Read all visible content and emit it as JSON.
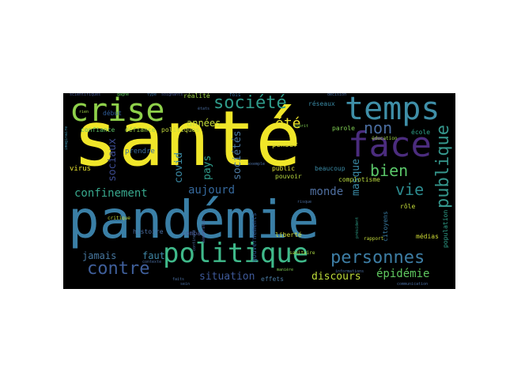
{
  "word_cloud": {
    "background": "#000000",
    "words": [
      {
        "text": "santé",
        "color": "#f0e629"
      },
      {
        "text": "pandémie",
        "color": "#3a7fa6"
      },
      {
        "text": "temps",
        "color": "#3f8fa8"
      },
      {
        "text": "crise",
        "color": "#8fd14a"
      },
      {
        "text": "politique",
        "color": "#3fb98a"
      },
      {
        "text": "face",
        "color": "#4b2c7e"
      },
      {
        "text": "société",
        "color": "#2f9b8a"
      },
      {
        "text": "personnes",
        "color": "#3d7da4"
      },
      {
        "text": "contre",
        "color": "#3f5f9b"
      },
      {
        "text": "confinement",
        "color": "#38a88d"
      },
      {
        "text": "publique",
        "color": "#35968c"
      },
      {
        "text": "non",
        "color": "#4a6da0"
      },
      {
        "text": "été",
        "color": "#f0e629"
      },
      {
        "text": "bien",
        "color": "#5ac669"
      },
      {
        "text": "vie",
        "color": "#2c8a8e"
      },
      {
        "text": "monde",
        "color": "#4f6fa0"
      },
      {
        "text": "épidémie",
        "color": "#5fc85f"
      },
      {
        "text": "aujourd",
        "color": "#35689c"
      },
      {
        "text": "situation",
        "color": "#3f5a9a"
      },
      {
        "text": "discours",
        "color": "#bedc3a"
      },
      {
        "text": "jamais",
        "color": "#47779f"
      },
      {
        "text": "faut",
        "color": "#3f86a5"
      },
      {
        "text": "années",
        "color": "#c8df3a"
      },
      {
        "text": "pays",
        "color": "#2f9b8a"
      },
      {
        "text": "covid",
        "color": "#3a8aa5"
      },
      {
        "text": "sociaux",
        "color": "#3b4a8e"
      },
      {
        "text": "sociétés",
        "color": "#4b78a0"
      },
      {
        "text": "masque",
        "color": "#3a8aa5"
      },
      {
        "text": "défiance",
        "color": "#9bd045"
      },
      {
        "text": "politiques",
        "color": "#c4da3c"
      },
      {
        "text": "confiance",
        "color": "#5cc064"
      },
      {
        "text": "virus",
        "color": "#e8e22f"
      },
      {
        "text": "prendre",
        "color": "#3a6d9e"
      },
      {
        "text": "penser",
        "color": "#e0e232"
      },
      {
        "text": "réalité",
        "color": "#9bd045"
      },
      {
        "text": "pouvoir",
        "color": "#b8d83f"
      },
      {
        "text": "beaucoup",
        "color": "#3a8aa5"
      },
      {
        "text": "parole",
        "color": "#7fcc52"
      },
      {
        "text": "école",
        "color": "#2fa08a"
      },
      {
        "text": "complotisme",
        "color": "#b8d83f"
      },
      {
        "text": "liberté",
        "color": "#d2de36"
      },
      {
        "text": "rôle",
        "color": "#c8df3a"
      },
      {
        "text": "médias",
        "color": "#d2de36"
      },
      {
        "text": "histoire",
        "color": "#4a6da0"
      },
      {
        "text": "combat",
        "color": "#4b5d9a"
      },
      {
        "text": "effets",
        "color": "#48789f"
      },
      {
        "text": "sanitaire",
        "color": "#a8d442"
      },
      {
        "text": "rapport",
        "color": "#c4da3c"
      },
      {
        "text": "réseaux",
        "color": "#3a8aa5"
      },
      {
        "text": "éducation",
        "color": "#9bd045"
      },
      {
        "text": "public",
        "color": "#dedf36"
      },
      {
        "text": "gouvernements",
        "color": "#2f5c98"
      },
      {
        "text": "citoyens",
        "color": "#3a7da4"
      },
      {
        "text": "critique",
        "color": "#c4da3c"
      },
      {
        "text": "début",
        "color": "#2f5c98"
      },
      {
        "text": "fois",
        "color": "#3a6d9e"
      },
      {
        "text": "soignants",
        "color": "#4b5d9a"
      },
      {
        "text": "scientifiques",
        "color": "#4b5d9a"
      },
      {
        "text": "type",
        "color": "#3a6d9e"
      },
      {
        "text": "gagné",
        "color": "#5fc85f"
      },
      {
        "text": "décision",
        "color": "#4a6da0"
      },
      {
        "text": "faits",
        "color": "#4a6da0"
      },
      {
        "text": "contexte",
        "color": "#4a6da0"
      },
      {
        "text": "informations",
        "color": "#4a6da0"
      },
      {
        "text": "communication",
        "color": "#4a6da0"
      },
      {
        "text": "manière",
        "color": "#7fcc52"
      },
      {
        "text": "exemple",
        "color": "#4a6da0"
      },
      {
        "text": "imaginaire",
        "color": "#3a8aa5"
      },
      {
        "text": "rien",
        "color": "#9bd045"
      },
      {
        "text": "états",
        "color": "#4a6da0"
      },
      {
        "text": "esprit",
        "color": "#7fcc52"
      },
      {
        "text": "risque",
        "color": "#4a6da0"
      },
      {
        "text": "démocratie",
        "color": "#4b5d9a"
      },
      {
        "text": "continent",
        "color": "#4a6da0"
      },
      {
        "text": "sein",
        "color": "#4a6da0"
      },
      {
        "text": "président",
        "color": "#2fa08a"
      },
      {
        "text": "population",
        "color": "#2fa08a"
      }
    ]
  }
}
